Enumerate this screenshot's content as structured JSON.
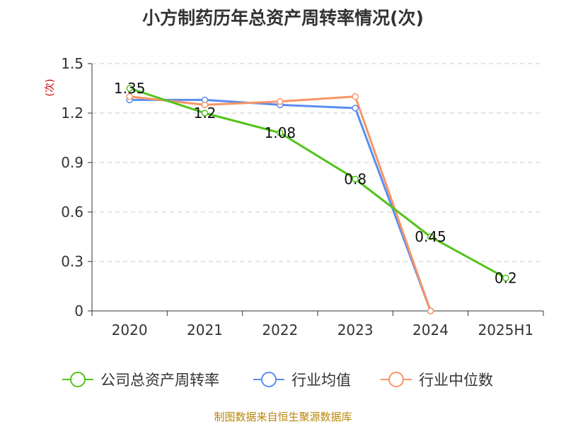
{
  "title": "小方制药历年总资产周转率情况(次)",
  "source": "制图数据来自恒生聚源数据库",
  "chart_data": {
    "type": "line",
    "categories": [
      "2020",
      "2021",
      "2022",
      "2023",
      "2024",
      "2025H1"
    ],
    "ylabel": "(次)",
    "ylim": [
      0,
      1.5
    ],
    "yticks": [
      "0",
      "0.3",
      "0.6",
      "0.9",
      "1.2",
      "1.5"
    ],
    "grid": true,
    "legend_position": "bottom",
    "series": [
      {
        "name": "公司总资产周转率",
        "color": "#52c41a",
        "values": [
          1.35,
          1.2,
          1.08,
          0.8,
          0.45,
          0.2
        ],
        "labels": [
          "1.35",
          "1.2",
          "1.08",
          "0.8",
          "0.45",
          "0.2"
        ]
      },
      {
        "name": "行业均值",
        "color": "#5b8def",
        "values": [
          1.28,
          1.28,
          1.25,
          1.23,
          0,
          null
        ]
      },
      {
        "name": "行业中位数",
        "color": "#f79566",
        "values": [
          1.3,
          1.25,
          1.27,
          1.3,
          0,
          null
        ]
      }
    ]
  }
}
